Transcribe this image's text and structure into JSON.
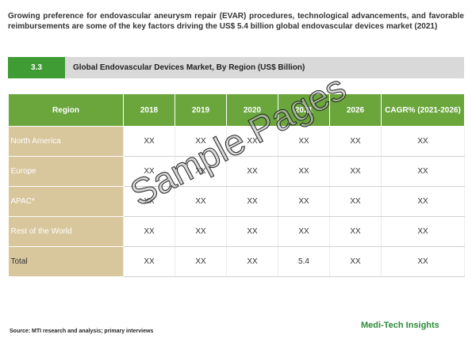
{
  "intro": "Growing preference for endovascular aneurysm repair (EVAR) procedures, technological advancements, and favorable reimbursements are some of the key factors driving the US$ 5.4 billion global endovascular devices market (2021)",
  "section": {
    "number": "3.3",
    "title": "Global Endovascular Devices Market, By Region (US$ Billion)"
  },
  "table": {
    "header": [
      "Region",
      "2018",
      "2019",
      "2020",
      "2021",
      "2026",
      "CAGR% (2021-2026)"
    ],
    "rows": [
      [
        "North America",
        "XX",
        "XX",
        "XX",
        "XX",
        "XX",
        "XX"
      ],
      [
        "Europe",
        "XX",
        "XX",
        "XX",
        "XX",
        "XX",
        "XX"
      ],
      [
        "APAC*",
        "XX",
        "XX",
        "XX",
        "XX",
        "XX",
        "XX"
      ],
      [
        "Rest of the World",
        "XX",
        "XX",
        "XX",
        "XX",
        "XX",
        "XX"
      ],
      [
        "Total",
        "XX",
        "XX",
        "XX",
        "5.4",
        "XX",
        "XX"
      ]
    ]
  },
  "watermark": "Sample Pages",
  "source": "Source: MTI research and analysis; primary interviews",
  "brand": "Medi-Tech Insights"
}
